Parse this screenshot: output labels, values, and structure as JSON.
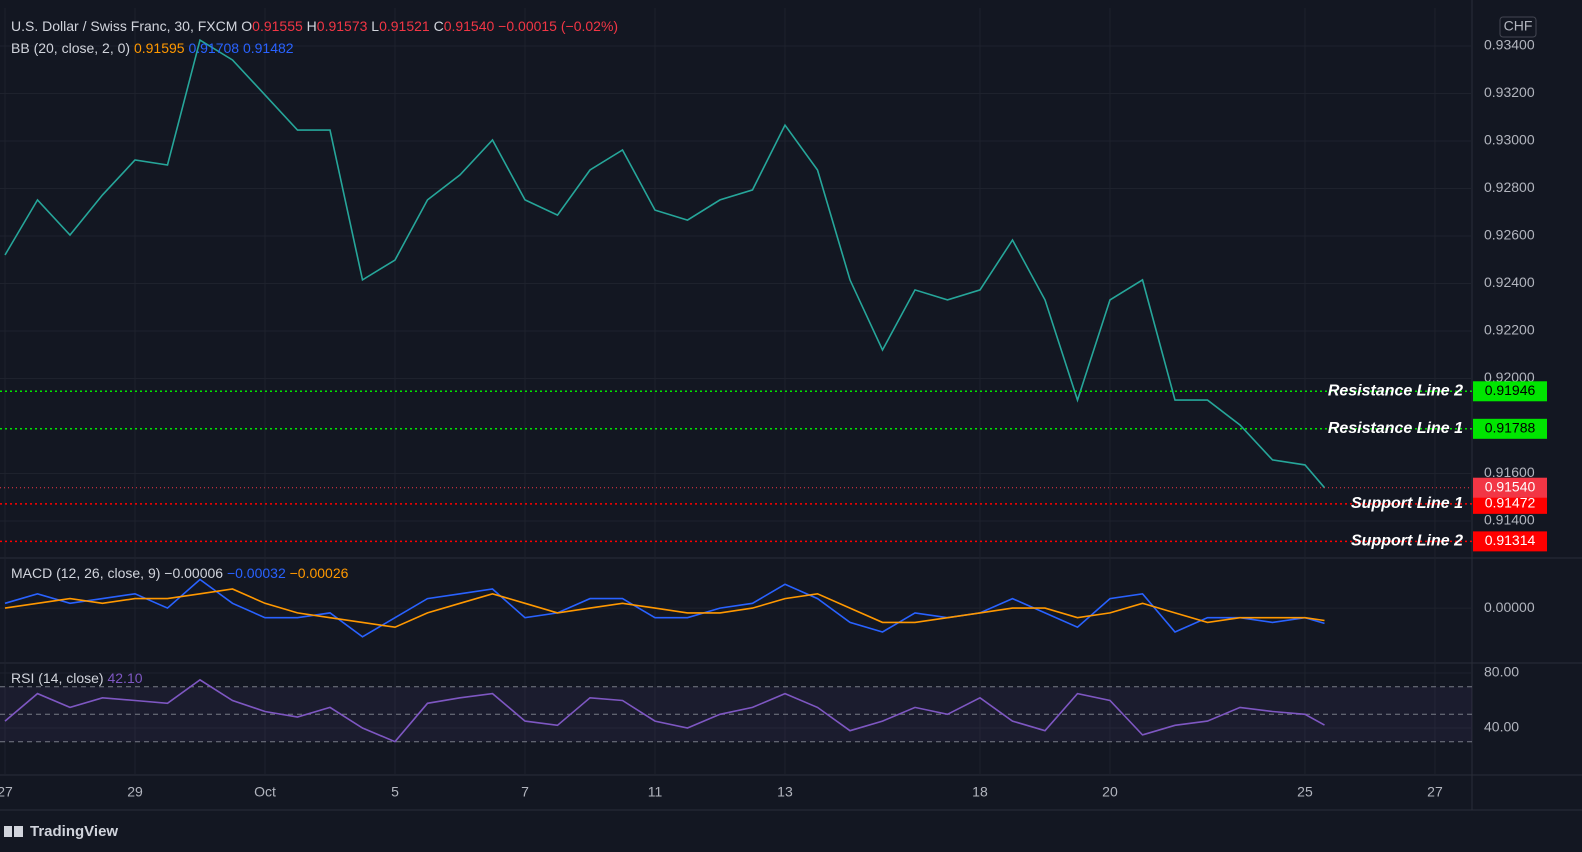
{
  "chart_data": [
    {
      "type": "line",
      "title": "U.S. Dollar / Swiss Franc, 30, FXCM",
      "ohlc": [
        {
          "key": "O",
          "value": "0.91555"
        },
        {
          "key": "H",
          "value": "0.91573"
        },
        {
          "key": "L",
          "value": "0.91521"
        },
        {
          "key": "C",
          "value": "0.91540"
        }
      ],
      "change": "−0.00015 (−0.02%)",
      "indicator": {
        "name": "BB (20, close, 2, 0)",
        "values": [
          "0.91595",
          "0.91708",
          "0.91482"
        ],
        "colors": [
          "#ff9800",
          "#2962ff",
          "#2962ff"
        ]
      },
      "currency": "CHF",
      "x": [
        0,
        0.5,
        1,
        1.5,
        2,
        2.5,
        3,
        3.5,
        4,
        4.5,
        5,
        5.5,
        6,
        6.5,
        7,
        7.5,
        8,
        8.5,
        9,
        9.5,
        10,
        10.5,
        11,
        11.5,
        12,
        12.5,
        13,
        13.5,
        14,
        14.5,
        15,
        15.5,
        16,
        16.5,
        17,
        17.5,
        18,
        18.5,
        19,
        19.5,
        20,
        20.3
      ],
      "values": [
        0.9252,
        0.92752,
        0.92604,
        0.92773,
        0.9292,
        0.92899,
        0.93425,
        0.93341,
        0.93194,
        0.93046,
        0.93046,
        0.92415,
        0.92499,
        0.92752,
        0.92857,
        0.93004,
        0.92752,
        0.92688,
        0.92878,
        0.92962,
        0.92709,
        0.92667,
        0.92752,
        0.92794,
        0.93067,
        0.92878,
        0.92415,
        0.9212,
        0.92373,
        0.92331,
        0.92373,
        0.92583,
        0.92331,
        0.91909,
        0.92331,
        0.92415,
        0.91909,
        0.91909,
        0.91804,
        0.91657,
        0.91636,
        0.9154
      ],
      "color": "#26a69a",
      "xlim": [
        -0.077,
        22.57
      ],
      "xticks": [
        {
          "value": 0,
          "label": "27"
        },
        {
          "value": 2,
          "label": "29"
        },
        {
          "value": 4,
          "label": "Oct"
        },
        {
          "value": 6,
          "label": "5"
        },
        {
          "value": 8,
          "label": "7"
        },
        {
          "value": 10,
          "label": "11"
        },
        {
          "value": 12,
          "label": "13"
        },
        {
          "value": 15,
          "label": "18"
        },
        {
          "value": 17,
          "label": "20"
        },
        {
          "value": 20,
          "label": "25"
        },
        {
          "value": 22,
          "label": "27"
        }
      ],
      "ylim": [
        0.91244,
        0.9356
      ],
      "yticks": [
        {
          "value": 0.934,
          "label": "0.93400"
        },
        {
          "value": 0.932,
          "label": "0.93200"
        },
        {
          "value": 0.93,
          "label": "0.93000"
        },
        {
          "value": 0.928,
          "label": "0.92800"
        },
        {
          "value": 0.926,
          "label": "0.92600"
        },
        {
          "value": 0.924,
          "label": "0.92400"
        },
        {
          "value": 0.922,
          "label": "0.92200"
        },
        {
          "value": 0.92,
          "label": "0.92000"
        },
        {
          "value": 0.916,
          "label": "0.91600"
        },
        {
          "value": 0.914,
          "label": "0.91400"
        }
      ],
      "grid": true,
      "levels": [
        {
          "name": "Resistance Line 2",
          "value": 0.91946,
          "label": "0.91946",
          "color": "#00e600",
          "text_color": "#000000"
        },
        {
          "name": "Resistance Line 1",
          "value": 0.91788,
          "label": "0.91788",
          "color": "#00e600",
          "text_color": "#000000"
        },
        {
          "name": "Support Line 1",
          "value": 0.91472,
          "label": "0.91472",
          "color": "#ff0000",
          "text_color": "#ffffff"
        },
        {
          "name": "Support Line 2",
          "value": 0.91314,
          "label": "0.91314",
          "color": "#ff0000",
          "text_color": "#ffffff"
        }
      ],
      "last": {
        "value": 0.9154,
        "label": "0.91540",
        "color": "#f23645"
      }
    },
    {
      "type": "line",
      "title": "MACD (12, 26, close, 9)",
      "header_values": [
        "−0.00006",
        "−0.00032",
        "−0.00026"
      ],
      "header_colors": [
        "#d1d4dc",
        "#2962ff",
        "#ff9800"
      ],
      "x": [
        0,
        0.5,
        1,
        1.5,
        2,
        2.5,
        3,
        3.5,
        4,
        4.5,
        5,
        5.5,
        6,
        6.5,
        7,
        7.5,
        8,
        8.5,
        9,
        9.5,
        10,
        10.5,
        11,
        11.5,
        12,
        12.5,
        13,
        13.5,
        14,
        14.5,
        15,
        15.5,
        16,
        16.5,
        17,
        17.5,
        18,
        18.5,
        19,
        19.5,
        20,
        20.3
      ],
      "series": [
        {
          "color": "#2962ff",
          "values": [
            0.0001,
            0.0003,
            0.0001,
            0.0002,
            0.0003,
            0.0,
            0.0006,
            0.0001,
            -0.0002,
            -0.0002,
            -0.0001,
            -0.0006,
            -0.0002,
            0.0002,
            0.0003,
            0.0004,
            -0.0002,
            -0.0001,
            0.0002,
            0.0002,
            -0.0002,
            -0.0002,
            0.0,
            0.0001,
            0.0005,
            0.0002,
            -0.0003,
            -0.0005,
            -0.0001,
            -0.0002,
            -0.0001,
            0.0002,
            -0.0001,
            -0.0004,
            0.0002,
            0.0003,
            -0.0005,
            -0.0002,
            -0.0002,
            -0.0003,
            -0.0002,
            -0.00032
          ]
        },
        {
          "color": "#ff9800",
          "values": [
            0.0,
            0.0001,
            0.0002,
            0.0001,
            0.0002,
            0.0002,
            0.0003,
            0.0004,
            0.0001,
            -0.0001,
            -0.0002,
            -0.0003,
            -0.0004,
            -0.0001,
            0.0001,
            0.0003,
            0.0001,
            -0.0001,
            0.0,
            0.0001,
            0.0,
            -0.0001,
            -0.0001,
            0.0,
            0.0002,
            0.0003,
            0.0,
            -0.0003,
            -0.0003,
            -0.0002,
            -0.0001,
            0.0,
            0.0,
            -0.0002,
            -0.0001,
            0.0001,
            -0.0001,
            -0.0003,
            -0.0002,
            -0.0002,
            -0.0002,
            -0.00026
          ]
        }
      ],
      "xlim": [
        -0.077,
        22.57
      ],
      "ylim": [
        -0.00115,
        0.00105
      ],
      "yticks": [
        {
          "value": 0,
          "label": "0.00000"
        }
      ]
    },
    {
      "type": "line",
      "title": "RSI (14, close)",
      "header_values": [
        "42.10"
      ],
      "header_colors": [
        "#7e57c2"
      ],
      "x": [
        0,
        0.5,
        1,
        1.5,
        2,
        2.5,
        3,
        3.5,
        4,
        4.5,
        5,
        5.5,
        6,
        6.5,
        7,
        7.5,
        8,
        8.5,
        9,
        9.5,
        10,
        10.5,
        11,
        11.5,
        12,
        12.5,
        13,
        13.5,
        14,
        14.5,
        15,
        15.5,
        16,
        16.5,
        17,
        17.5,
        18,
        18.5,
        19,
        19.5,
        20,
        20.3
      ],
      "values": [
        45,
        65,
        55,
        62,
        60,
        58,
        75,
        60,
        52,
        48,
        55,
        40,
        30,
        58,
        62,
        65,
        45,
        42,
        62,
        60,
        45,
        40,
        50,
        55,
        65,
        55,
        38,
        45,
        55,
        50,
        62,
        45,
        38,
        65,
        60,
        35,
        42,
        45,
        55,
        52,
        50,
        42.1
      ],
      "color": "#7e57c2",
      "xlim": [
        -0.077,
        22.57
      ],
      "ylim": [
        5.8,
        87.3
      ],
      "yticks": [
        {
          "value": 80,
          "label": "80.00"
        },
        {
          "value": 40,
          "label": "40.00"
        }
      ],
      "levels": [
        70,
        50,
        30
      ]
    }
  ],
  "branding": "TradingView"
}
